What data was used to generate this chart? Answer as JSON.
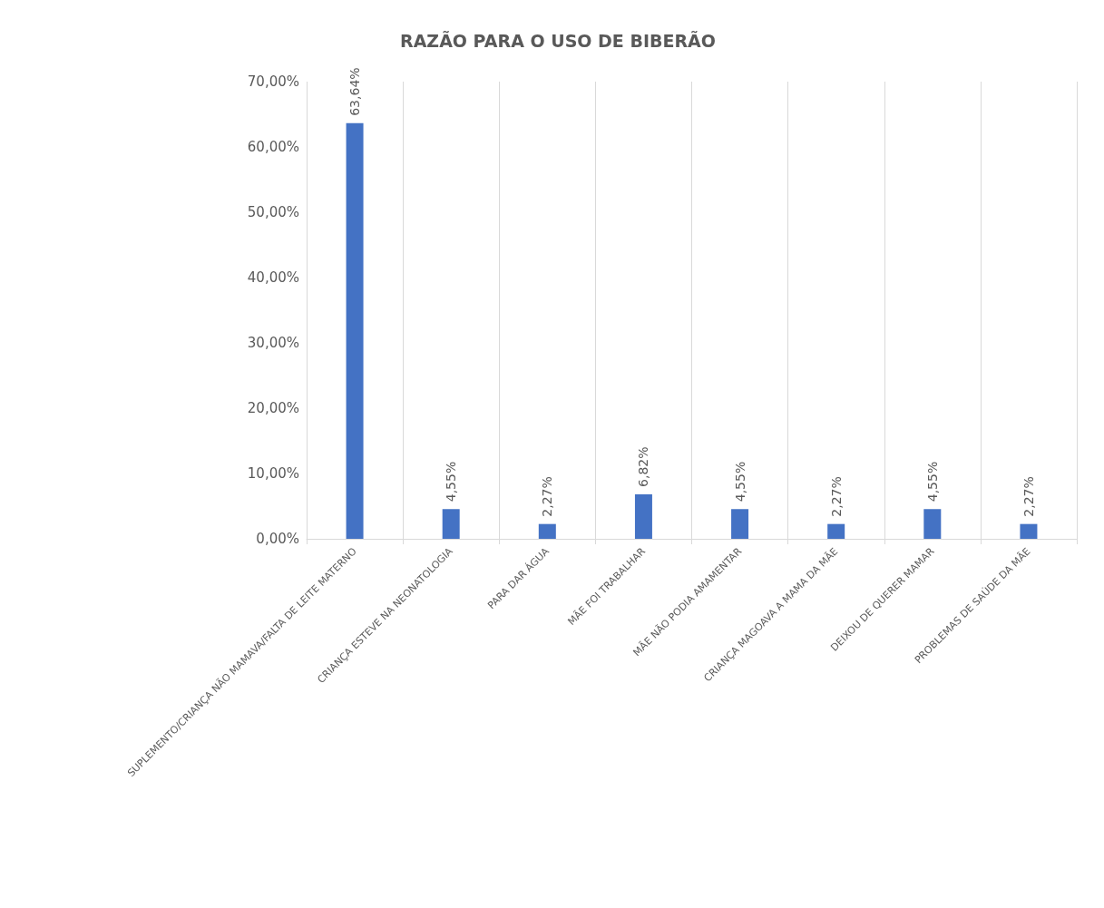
{
  "chart_data": {
    "type": "bar",
    "title": "RAZÃO PARA O USO DE BIBERÃO",
    "categories": [
      "SUPLEMENTO/CRIANÇA NÃO MAMAVA/FALTA DE LEITE MATERNO",
      "CRIANÇA ESTEVE NA NEONATOLOGIA",
      "PARA DAR ÁGUA",
      "MÃE FOI TRABALHAR",
      "MÃE NÃO PODIA AMAMENTAR",
      "CRIANÇA MAGOAVA A MAMA DA MÃE",
      "DEIXOU DE QUERER MAMAR",
      "PROBLEMAS DE SAÚDE DA MÃE"
    ],
    "values": [
      63.64,
      4.55,
      2.27,
      6.82,
      4.55,
      2.27,
      4.55,
      2.27
    ],
    "value_labels": [
      "63,64%",
      "4,55%",
      "2,27%",
      "6,82%",
      "4,55%",
      "2,27%",
      "4,55%",
      "2,27%"
    ],
    "color": "#4472c4",
    "ylim": [
      0,
      70
    ],
    "yticks": [
      {
        "value": 0,
        "label": "0,00%"
      },
      {
        "value": 10,
        "label": "10,00%"
      },
      {
        "value": 20,
        "label": "20,00%"
      },
      {
        "value": 30,
        "label": "30,00%"
      },
      {
        "value": 40,
        "label": "40,00%"
      },
      {
        "value": 50,
        "label": "50,00%"
      },
      {
        "value": 60,
        "label": "60,00%"
      },
      {
        "value": 70,
        "label": "70,00%"
      }
    ],
    "grid": "x"
  }
}
